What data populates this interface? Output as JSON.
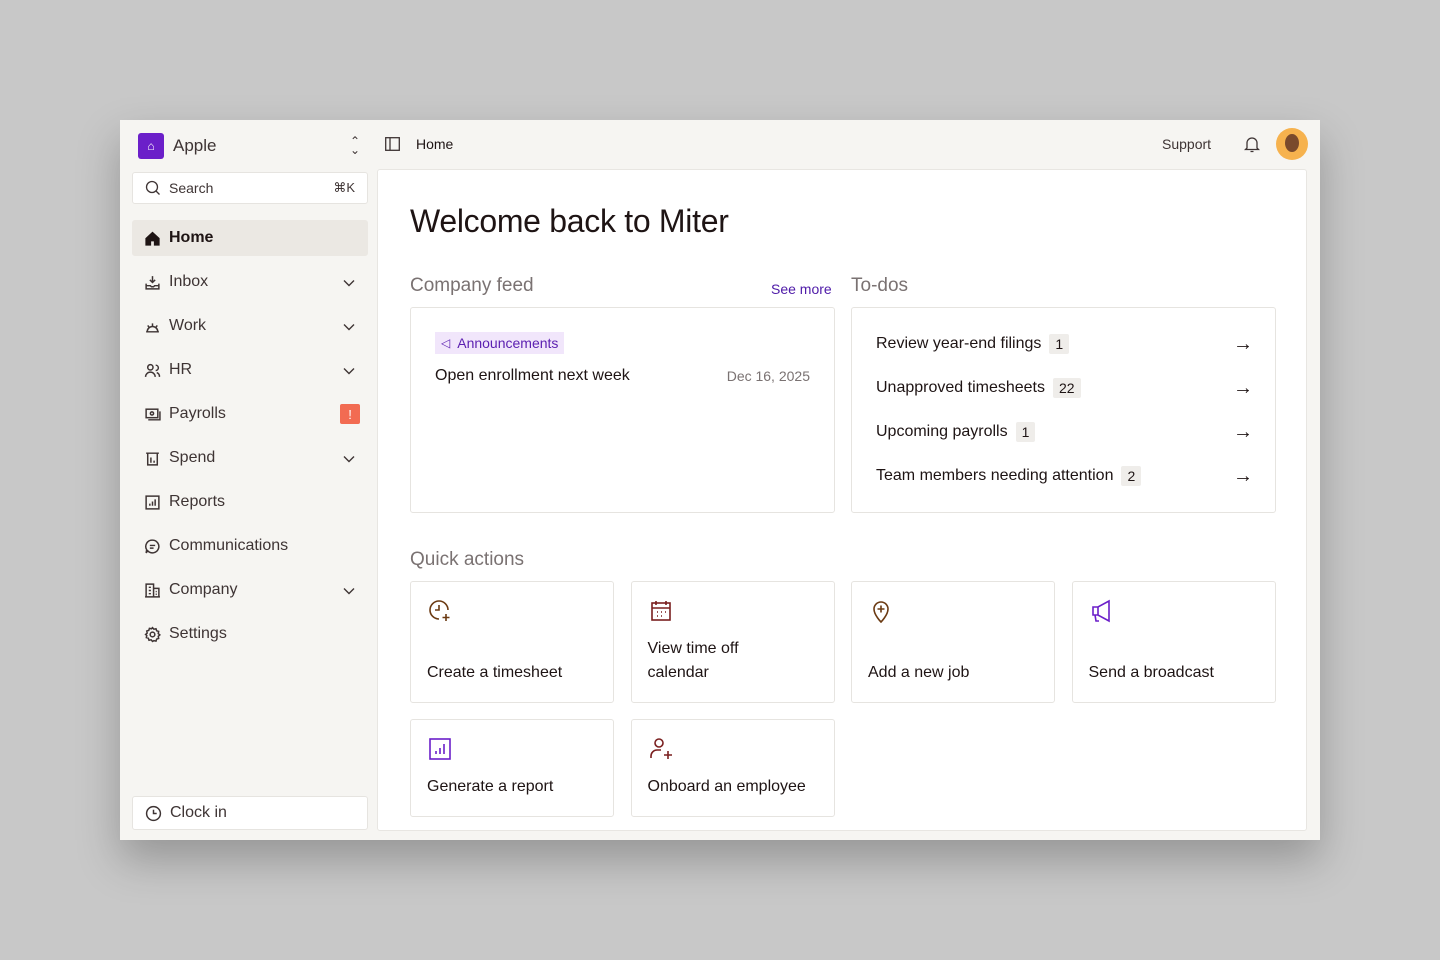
{
  "org": {
    "name": "Apple"
  },
  "search": {
    "label": "Search",
    "shortcut": "⌘K"
  },
  "sidebar": {
    "items": [
      {
        "label": "Home",
        "icon": "home-icon",
        "active": true
      },
      {
        "label": "Inbox",
        "icon": "inbox-icon",
        "chevron": true
      },
      {
        "label": "Work",
        "icon": "work-icon",
        "chevron": true
      },
      {
        "label": "HR",
        "icon": "users-icon",
        "chevron": true
      },
      {
        "label": "Payrolls",
        "icon": "payroll-icon",
        "alert": "!"
      },
      {
        "label": "Spend",
        "icon": "spend-icon",
        "chevron": true
      },
      {
        "label": "Reports",
        "icon": "reports-icon"
      },
      {
        "label": "Communications",
        "icon": "chat-icon"
      },
      {
        "label": "Company",
        "icon": "building-icon",
        "chevron": true
      },
      {
        "label": "Settings",
        "icon": "gear-icon"
      }
    ],
    "clock_in": "Clock in"
  },
  "header": {
    "breadcrumb": "Home",
    "support": "Support"
  },
  "main": {
    "title": "Welcome back to Miter",
    "feed": {
      "title": "Company feed",
      "see_more": "See more",
      "tag": "Announcements",
      "item": "Open enrollment next week",
      "date": "Dec 16, 2025"
    },
    "todos": {
      "title": "To-dos",
      "items": [
        {
          "label": "Review year-end filings",
          "count": "1"
        },
        {
          "label": "Unapproved timesheets",
          "count": "22"
        },
        {
          "label": "Upcoming payrolls",
          "count": "1"
        },
        {
          "label": "Team members needing attention",
          "count": "2"
        }
      ]
    },
    "quick_actions": {
      "title": "Quick actions",
      "items": [
        {
          "label": "Create a timesheet",
          "icon": "clock-plus-icon"
        },
        {
          "label": "View time off calendar",
          "icon": "calendar-icon"
        },
        {
          "label": "Add a new job",
          "icon": "map-pin-plus-icon"
        },
        {
          "label": "Send a broadcast",
          "icon": "megaphone-icon"
        },
        {
          "label": "Generate a report",
          "icon": "chart-icon"
        },
        {
          "label": "Onboard an employee",
          "icon": "user-plus-icon"
        }
      ]
    }
  },
  "colors": {
    "accent": "#6b1fc9",
    "alert": "#f26b52",
    "brown": "#6b3a12"
  }
}
